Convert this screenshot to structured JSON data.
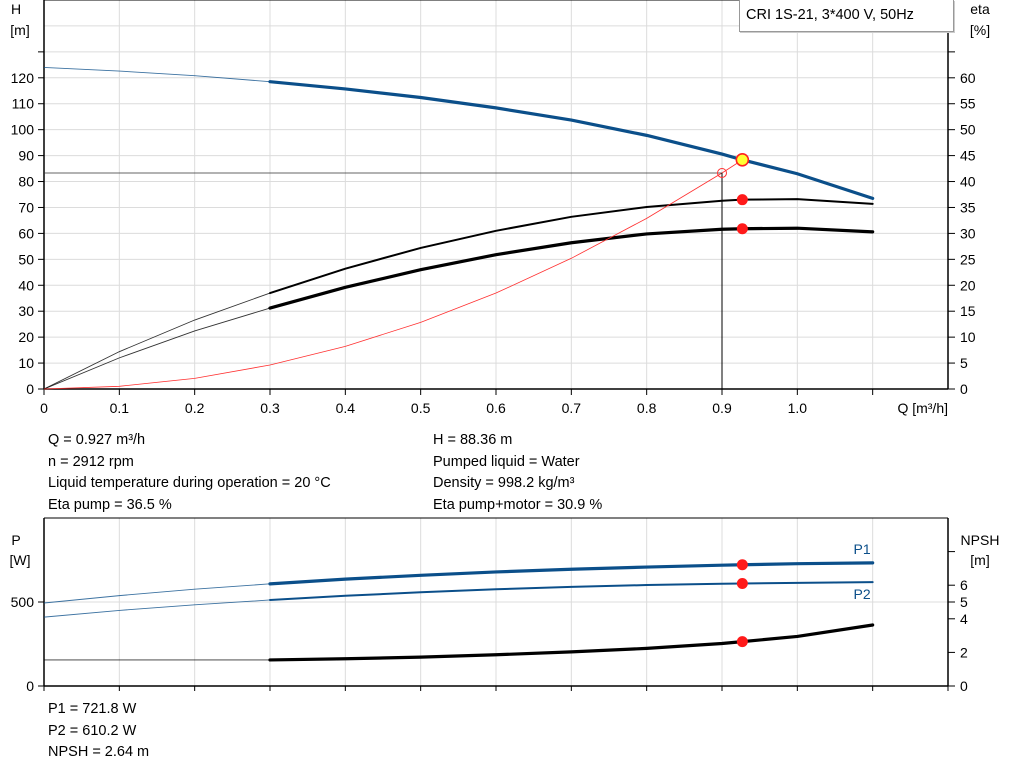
{
  "chart_data": [
    {
      "type": "line",
      "title": "CRI 1S-21, 3*400 V, 50Hz",
      "xlabel": "Q [m³/h]",
      "ylabel_left": "H",
      "ylabel_left_unit": "[m]",
      "ylabel_right": "eta",
      "ylabel_right_unit": "[%]",
      "xlim": [
        0,
        1.2
      ],
      "ylim_left": [
        0,
        150
      ],
      "ylim_right": [
        0,
        75
      ],
      "x_ticks": [
        "0",
        "0.1",
        "0.2",
        "0.3",
        "0.4",
        "0.5",
        "0.6",
        "0.7",
        "0.8",
        "0.9",
        "1.0"
      ],
      "y_left_ticks": [
        "0",
        "10",
        "20",
        "30",
        "40",
        "50",
        "60",
        "70",
        "80",
        "90",
        "100",
        "110",
        "120"
      ],
      "y_right_ticks": [
        "0",
        "5",
        "10",
        "15",
        "20",
        "25",
        "30",
        "35",
        "40",
        "45",
        "50",
        "55",
        "60"
      ],
      "grid": true,
      "series": [
        {
          "key": "H",
          "axis": "left",
          "color": "#0b4f8a",
          "x": [
            0,
            0.1,
            0.2,
            0.3,
            0.4,
            0.5,
            0.6,
            0.7,
            0.8,
            0.9,
            0.927,
            1.0,
            1.1
          ],
          "y": [
            124,
            122.6,
            120.8,
            118.5,
            115.7,
            112.4,
            108.4,
            103.7,
            97.8,
            90.6,
            88.36,
            83.0,
            73.5
          ],
          "thick_from": 0.3
        },
        {
          "key": "eta_pump",
          "axis": "right",
          "color": "#000000",
          "x": [
            0,
            0.1,
            0.2,
            0.3,
            0.4,
            0.5,
            0.6,
            0.7,
            0.8,
            0.9,
            0.927,
            1.0,
            1.1
          ],
          "y": [
            0,
            7.2,
            13.3,
            18.5,
            23.2,
            27.2,
            30.5,
            33.2,
            35.1,
            36.3,
            36.5,
            36.6,
            35.7
          ],
          "thick_from": 0.3
        },
        {
          "key": "eta_pump_motor",
          "axis": "right",
          "color": "#000000",
          "x": [
            0,
            0.1,
            0.2,
            0.3,
            0.4,
            0.5,
            0.6,
            0.7,
            0.8,
            0.9,
            0.927,
            1.0,
            1.1
          ],
          "y": [
            0,
            6.0,
            11.2,
            15.6,
            19.6,
            23.0,
            25.9,
            28.2,
            29.9,
            30.8,
            30.9,
            31.0,
            30.3
          ],
          "thick_from": 0.3
        },
        {
          "key": "system_curve",
          "axis": "left",
          "color": "#ff3030",
          "x": [
            0,
            0.1,
            0.2,
            0.3,
            0.4,
            0.5,
            0.6,
            0.7,
            0.8,
            0.9,
            0.927
          ],
          "y": [
            0,
            1.03,
            4.11,
            9.25,
            16.45,
            25.7,
            37.0,
            50.4,
            65.8,
            83.3,
            88.36
          ],
          "thick_from": null
        }
      ],
      "duty_point": {
        "q": 0.927,
        "h": 88.36,
        "eta_pump": 36.5,
        "eta_pump_motor": 30.9
      },
      "requested_point": {
        "q": 0.9,
        "h": 83.3
      }
    },
    {
      "type": "line",
      "xlabel": "",
      "ylabel_left": "P",
      "ylabel_left_unit": "[W]",
      "ylabel_right": "NPSH",
      "ylabel_right_unit": "[m]",
      "xlim": [
        0,
        1.2
      ],
      "ylim_left": [
        0,
        1000
      ],
      "ylim_right": [
        0,
        10
      ],
      "y_left_ticks": [
        "0",
        "500"
      ],
      "y_right_ticks": [
        "0",
        "2",
        "4",
        "5",
        "6"
      ],
      "grid": true,
      "series": [
        {
          "key": "P1",
          "name": "P1",
          "axis": "left",
          "color": "#0b4f8a",
          "x": [
            0,
            0.1,
            0.2,
            0.3,
            0.4,
            0.5,
            0.6,
            0.7,
            0.8,
            0.9,
            0.927,
            1.0,
            1.1
          ],
          "y": [
            494,
            538,
            576,
            608,
            636,
            659,
            679,
            695,
            708,
            719,
            721.8,
            728,
            733
          ],
          "thick_from": 0.3
        },
        {
          "key": "P2",
          "name": "P2",
          "axis": "left",
          "color": "#0b4f8a",
          "x": [
            0,
            0.1,
            0.2,
            0.3,
            0.4,
            0.5,
            0.6,
            0.7,
            0.8,
            0.9,
            0.927,
            1.0,
            1.1
          ],
          "y": [
            410,
            450,
            483,
            512,
            537,
            558,
            576,
            590,
            601,
            609,
            610.2,
            614,
            618
          ],
          "thick_from": 0.3
        },
        {
          "key": "NPSH",
          "axis": "right",
          "color": "#000000",
          "x": [
            0,
            0.3,
            0.4,
            0.5,
            0.6,
            0.7,
            0.8,
            0.9,
            0.927,
            1.0,
            1.1
          ],
          "y": [
            1.55,
            1.55,
            1.62,
            1.72,
            1.86,
            2.03,
            2.24,
            2.53,
            2.64,
            2.95,
            3.63
          ],
          "thick_from": 0.3
        }
      ],
      "duty_point": {
        "q": 0.927,
        "p1": 721.8,
        "p2": 610.2,
        "npsh": 2.64
      }
    }
  ],
  "results": {
    "left": [
      "Q = 0.927 m³/h",
      "n = 2912 rpm",
      "Liquid temperature during operation = 20 °C",
      "Eta pump = 36.5 %"
    ],
    "right": [
      "H = 88.36 m",
      "Pumped liquid = Water",
      "Density = 998.2 kg/m³",
      "Eta pump+motor = 30.9 %"
    ],
    "power": [
      "P1 = 721.8 W",
      "P2 = 610.2 W",
      "NPSH = 2.64 m"
    ]
  }
}
